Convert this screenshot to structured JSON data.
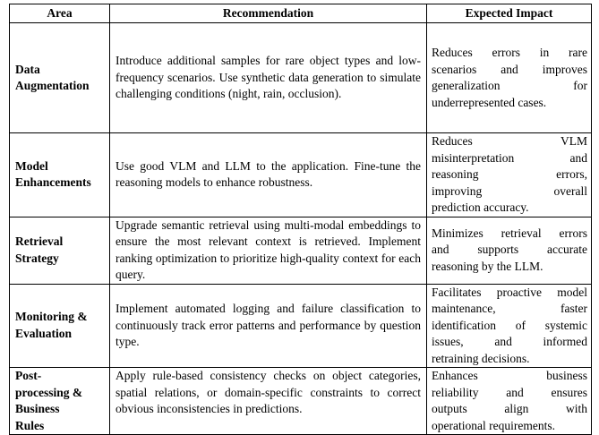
{
  "headers": {
    "area": "Area",
    "recommendation": "Recommendation",
    "impact": "Expected Impact"
  },
  "rows": [
    {
      "area": [
        "Data",
        "Augmentation"
      ],
      "recommendation": "Introduce additional samples for rare object types and low-frequency scenarios. Use synthetic data generation to simulate challenging conditions (night, rain, occlusion).",
      "impact": [
        "Reduces errors in rare",
        "scenarios and improves",
        "generalization for",
        "underrepresented cases."
      ]
    },
    {
      "area": [
        "Model",
        "Enhancements"
      ],
      "recommendation": "Use good VLM and LLM to the application. Fine-tune the reasoning models to enhance robustness.",
      "impact": [
        "Reduces VLM",
        "misinterpretation and",
        "reasoning errors,",
        "improving overall",
        "prediction accuracy."
      ]
    },
    {
      "area": [
        "Retrieval",
        "Strategy"
      ],
      "recommendation": "Upgrade semantic retrieval using multi-modal embeddings to ensure the most relevant context is retrieved. Implement ranking optimization to prioritize high-quality context for each query.",
      "impact": [
        "Minimizes retrieval errors",
        "and supports accurate",
        "reasoning by the LLM."
      ]
    },
    {
      "area": [
        "Monitoring &",
        "Evaluation"
      ],
      "recommendation": "Implement automated logging and failure classification to continuously track error patterns and performance by question type.",
      "impact": [
        "Facilitates proactive model",
        "maintenance, faster",
        "identification of systemic",
        "issues, and informed",
        "retraining decisions."
      ]
    },
    {
      "area": [
        "Post-",
        "processing &",
        "Business",
        "Rules"
      ],
      "recommendation": "Apply rule-based consistency checks on object categories, spatial relations, or domain-specific constraints to correct obvious inconsistencies in predictions.",
      "impact": [
        "Enhances business",
        "reliability and ensures",
        "outputs align with",
        "operational requirements."
      ]
    }
  ]
}
